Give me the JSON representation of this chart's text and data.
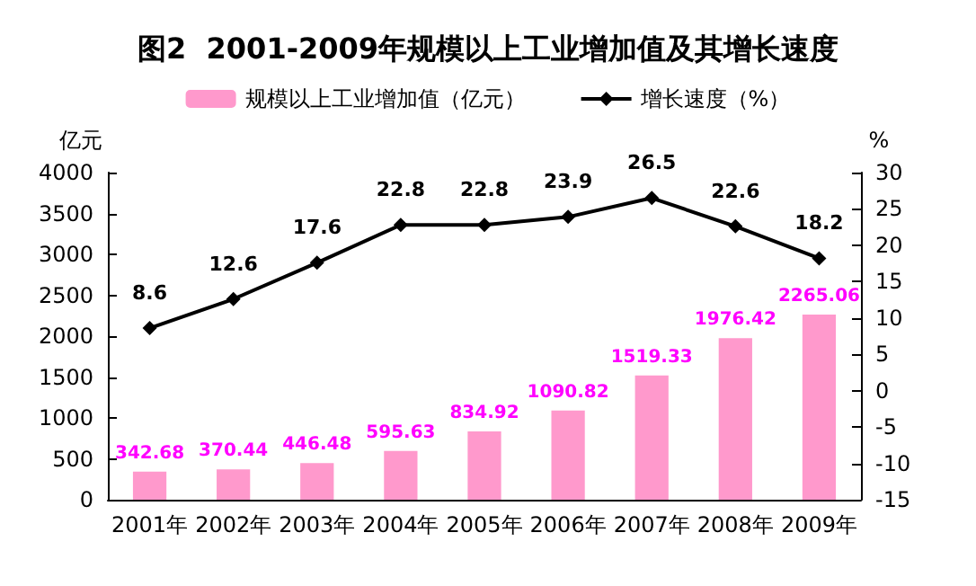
{
  "chart_data": {
    "type": "bar",
    "title": "图2  2001-2009年规模以上工业增加值及其增长速度",
    "ylabel": "亿元",
    "y2label": "%",
    "categories": [
      "2001年",
      "2002年",
      "2003年",
      "2004年",
      "2005年",
      "2006年",
      "2007年",
      "2008年",
      "2009年"
    ],
    "series": [
      {
        "name": "规模以上工业增加值（亿元）",
        "color": "#ff99cc",
        "values": [
          342.68,
          370.44,
          446.48,
          595.63,
          834.92,
          1090.82,
          1519.33,
          1976.42,
          2265.06
        ]
      },
      {
        "name": "增长速度（%）",
        "type": "line",
        "axis": "y2",
        "color": "#000000",
        "values": [
          8.6,
          12.6,
          17.6,
          22.8,
          22.8,
          23.9,
          26.5,
          22.6,
          18.2
        ]
      }
    ],
    "ylim": [
      0,
      4000
    ],
    "yticks": [
      0,
      500,
      1000,
      1500,
      2000,
      2500,
      3000,
      3500,
      4000
    ],
    "y2lim": [
      -15,
      30
    ],
    "y2ticks": [
      -15,
      -10,
      -5,
      0,
      5,
      10,
      15,
      20,
      25,
      30
    ],
    "data_labels": true,
    "legend": "top",
    "marker": "diamond",
    "grid": false
  }
}
